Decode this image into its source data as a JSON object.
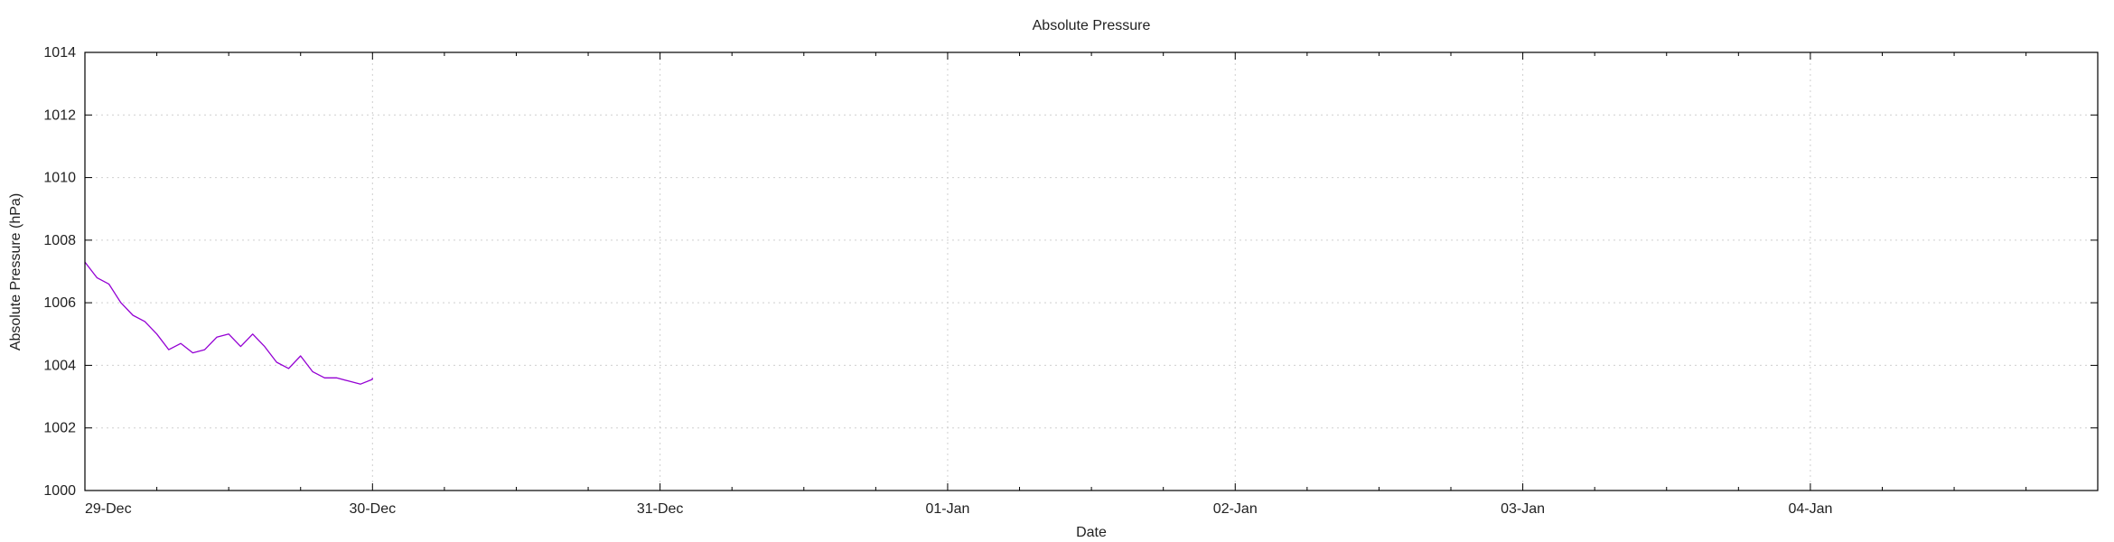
{
  "chart_data": {
    "type": "line",
    "title": "Absolute Pressure",
    "xlabel": "Date",
    "ylabel": "Absolute Pressure (hPa)",
    "ylim": [
      1000,
      1014
    ],
    "yticks": [
      "1000",
      "1002",
      "1004",
      "1006",
      "1008",
      "1010",
      "1012",
      "1014"
    ],
    "xlim": [
      "2021-12-29T00:00",
      "2022-01-04T23:59"
    ],
    "xticks": [
      {
        "t": "2021-12-29T00:00",
        "label": "29-Dec"
      },
      {
        "t": "2021-12-30T00:00",
        "label": "30-Dec"
      },
      {
        "t": "2021-12-31T00:00",
        "label": "31-Dec"
      },
      {
        "t": "2022-01-01T00:00",
        "label": "01-Jan"
      },
      {
        "t": "2022-01-02T00:00",
        "label": "02-Jan"
      },
      {
        "t": "2022-01-03T00:00",
        "label": "03-Jan"
      },
      {
        "t": "2022-01-04T00:00",
        "label": "04-Jan"
      }
    ],
    "grid": true,
    "series": [
      {
        "color": "#9400d3",
        "points": [
          [
            "2021-12-29T00:00",
            1007.3
          ],
          [
            "2021-12-29T01:00",
            1006.8
          ],
          [
            "2021-12-29T02:00",
            1006.6
          ],
          [
            "2021-12-29T03:00",
            1006.0
          ],
          [
            "2021-12-29T04:00",
            1005.6
          ],
          [
            "2021-12-29T05:00",
            1005.4
          ],
          [
            "2021-12-29T06:00",
            1005.0
          ],
          [
            "2021-12-29T07:00",
            1004.5
          ],
          [
            "2021-12-29T08:00",
            1004.7
          ],
          [
            "2021-12-29T09:00",
            1004.4
          ],
          [
            "2021-12-29T10:00",
            1004.5
          ],
          [
            "2021-12-29T11:00",
            1004.9
          ],
          [
            "2021-12-29T12:00",
            1005.0
          ],
          [
            "2021-12-29T13:00",
            1004.6
          ],
          [
            "2021-12-29T14:00",
            1005.0
          ],
          [
            "2021-12-29T15:00",
            1004.6
          ],
          [
            "2021-12-29T16:00",
            1004.1
          ],
          [
            "2021-12-29T17:00",
            1003.9
          ],
          [
            "2021-12-29T18:00",
            1004.3
          ],
          [
            "2021-12-29T19:00",
            1003.8
          ],
          [
            "2021-12-29T20:00",
            1003.6
          ],
          [
            "2021-12-29T21:00",
            1003.6
          ],
          [
            "2021-12-29T22:00",
            1003.5
          ],
          [
            "2021-12-29T23:00",
            1003.4
          ],
          [
            "2021-12-30T00:00",
            1003.6
          ],
          [
            "2021-12-29T23:59",
            1003.55
          ]
        ]
      }
    ]
  }
}
